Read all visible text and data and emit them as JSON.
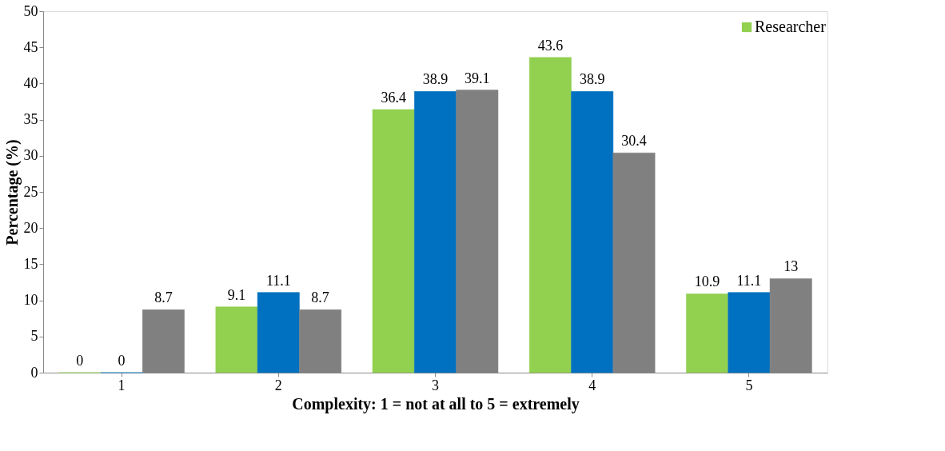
{
  "chart_data": {
    "type": "bar",
    "xlabel": "Complexity: 1 = not at all to 5 = extremely",
    "ylabel": "Percentage (%)",
    "categories": [
      "1",
      "2",
      "3",
      "4",
      "5"
    ],
    "series": [
      {
        "name": "Researcher",
        "color": "#92d050",
        "values": [
          0,
          9.1,
          36.4,
          43.6,
          10.9
        ]
      },
      {
        "color": "#0070c0",
        "values": [
          0,
          11.1,
          38.9,
          38.9,
          11.1
        ]
      },
      {
        "color": "#808080",
        "values": [
          8.7,
          8.7,
          39.1,
          30.4,
          13
        ]
      }
    ],
    "ylim": [
      0,
      50
    ],
    "yticks": [
      0,
      5,
      10,
      15,
      20,
      25,
      30,
      35,
      40,
      45,
      50
    ],
    "grid": false,
    "legend": "top right",
    "data_labels": true
  }
}
